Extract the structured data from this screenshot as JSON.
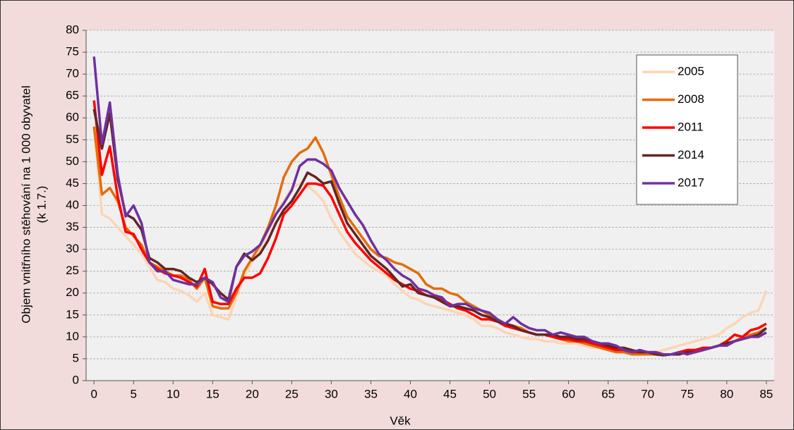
{
  "chart_data": {
    "type": "line",
    "x_label": "Věk",
    "y_label": [
      "Objem vnitřního stěhování na 1 000 obyvatel",
      "(k 1.7.)"
    ],
    "x": [
      0,
      1,
      2,
      3,
      4,
      5,
      6,
      7,
      8,
      9,
      10,
      11,
      12,
      13,
      14,
      15,
      16,
      17,
      18,
      19,
      20,
      21,
      22,
      23,
      24,
      25,
      26,
      27,
      28,
      29,
      30,
      31,
      32,
      33,
      34,
      35,
      36,
      37,
      38,
      39,
      40,
      41,
      42,
      43,
      44,
      45,
      46,
      47,
      48,
      49,
      50,
      51,
      52,
      53,
      54,
      55,
      56,
      57,
      58,
      59,
      60,
      61,
      62,
      63,
      64,
      65,
      66,
      67,
      68,
      69,
      70,
      71,
      72,
      73,
      74,
      75,
      76,
      77,
      78,
      79,
      80,
      81,
      82,
      83,
      84,
      85
    ],
    "xlim": [
      -1,
      86
    ],
    "xticks": [
      0,
      5,
      10,
      15,
      20,
      25,
      30,
      35,
      40,
      45,
      50,
      55,
      60,
      65,
      70,
      75,
      80,
      85
    ],
    "ylim": [
      0,
      80
    ],
    "yticks": [
      0,
      5,
      10,
      15,
      20,
      25,
      30,
      35,
      40,
      45,
      50,
      55,
      60,
      65,
      70,
      75,
      80
    ],
    "grid": true,
    "legend_position": "upper right",
    "series": [
      {
        "name": "2005",
        "color": "#fcd5b5",
        "values": [
          58,
          38,
          37,
          35,
          33,
          31,
          29,
          26,
          23,
          22.5,
          21,
          20.5,
          19.5,
          18,
          20,
          15,
          14.5,
          14,
          19,
          24,
          27,
          30,
          34,
          38,
          41,
          44,
          45,
          44.5,
          43,
          41,
          37,
          34,
          31.5,
          29,
          27.5,
          26,
          25,
          24,
          22,
          20.5,
          19,
          18.5,
          17.5,
          17,
          16.5,
          16,
          15.5,
          15,
          14,
          12.5,
          12.5,
          12,
          11,
          10.5,
          10,
          9.5,
          9.5,
          9,
          9,
          8.5,
          8.5,
          8.5,
          8,
          7.5,
          7.5,
          7,
          6.5,
          6.5,
          6.5,
          6,
          6,
          6.5,
          7,
          7.5,
          8,
          8.5,
          9,
          9.5,
          10,
          10.5,
          12,
          13,
          14.5,
          15.5,
          16,
          20.5
        ]
      },
      {
        "name": "2008",
        "color": "#e46c0a",
        "values": [
          58,
          42.5,
          44,
          41,
          35,
          33,
          31,
          27,
          26,
          25,
          24,
          24,
          23,
          21,
          23.5,
          17,
          16.5,
          16.5,
          20,
          25,
          28,
          31,
          35,
          40,
          46.5,
          50,
          52,
          53,
          55.5,
          52,
          47,
          42,
          37.5,
          35,
          32.5,
          30,
          28.5,
          28,
          27,
          26.5,
          25.5,
          24.5,
          22,
          21,
          21,
          20,
          19.5,
          18,
          17,
          16,
          15,
          14,
          13,
          12.5,
          12,
          11,
          10.5,
          10.5,
          10,
          9.5,
          9,
          9,
          8.5,
          8,
          7.5,
          7,
          6.5,
          6.5,
          6,
          6,
          6,
          6,
          6,
          6,
          6.5,
          6.5,
          7,
          7,
          7.5,
          8,
          8.5,
          9,
          10,
          10.5,
          11,
          12
        ]
      },
      {
        "name": "2011",
        "color": "#ff0000",
        "values": [
          64,
          47,
          53.5,
          42,
          34,
          33.5,
          30,
          27,
          25.5,
          24.5,
          24,
          23.5,
          22.5,
          21.5,
          25.5,
          18,
          17.5,
          17.5,
          21,
          23.5,
          23.5,
          24.5,
          28,
          32.5,
          38,
          40,
          42.5,
          45,
          45,
          44.5,
          42,
          38,
          34,
          31.5,
          29.5,
          27.5,
          26,
          24.5,
          23,
          22,
          21,
          20.5,
          19.5,
          19,
          18.5,
          17.5,
          16.5,
          16,
          15,
          14,
          14,
          13.5,
          12.5,
          12,
          11.5,
          11,
          10.5,
          10.5,
          10,
          9.5,
          9.5,
          9,
          9,
          8.5,
          8,
          7.5,
          7,
          7,
          6.5,
          6.5,
          6.5,
          6.5,
          6,
          6,
          6.5,
          7,
          7,
          7.5,
          7.5,
          8,
          9,
          10.5,
          10,
          11.5,
          12,
          13
        ]
      },
      {
        "name": "2014",
        "color": "#632523",
        "values": [
          62,
          53,
          61,
          46,
          38,
          37,
          34.5,
          28,
          27,
          25.5,
          25.5,
          25,
          23.5,
          22.5,
          23.5,
          22,
          20,
          18.5,
          26,
          29,
          27.5,
          29,
          32,
          36,
          39,
          41,
          44,
          47.5,
          46.5,
          45,
          45.5,
          40.5,
          36,
          33.5,
          31,
          28.5,
          27,
          25.5,
          23.5,
          21.5,
          22,
          20,
          19.5,
          19,
          18,
          17,
          17,
          16.5,
          16,
          15,
          14.5,
          13.5,
          13,
          12.5,
          11.5,
          11,
          10.5,
          10.5,
          10.5,
          10,
          10,
          9.5,
          9.5,
          9,
          8.5,
          8,
          7.5,
          7.5,
          7,
          6.5,
          6.5,
          6,
          5.8,
          6,
          6,
          6.5,
          6.5,
          7,
          7.5,
          8,
          8.5,
          9,
          9.5,
          10,
          10.5,
          12
        ]
      },
      {
        "name": "2017",
        "color": "#7030a0",
        "values": [
          74,
          54,
          63.5,
          47,
          37.5,
          40,
          36,
          27,
          25,
          25,
          23,
          22.5,
          22,
          22,
          23.5,
          22.5,
          19,
          18,
          26,
          28.5,
          29.5,
          31,
          34.5,
          38,
          40.5,
          43.5,
          49,
          50.5,
          50.5,
          49.5,
          48,
          44,
          41,
          38,
          35.5,
          32,
          29,
          27.5,
          25.5,
          24,
          23,
          21,
          20.5,
          19.5,
          19,
          17,
          17.5,
          17.5,
          16.5,
          16,
          15.5,
          14,
          13,
          14.5,
          13,
          12,
          11.5,
          11.5,
          10.5,
          11,
          10.5,
          10,
          10,
          9,
          8.5,
          8.5,
          8,
          7,
          6.5,
          7,
          6.5,
          6.5,
          6,
          6,
          6.5,
          6,
          6.5,
          7,
          7.5,
          8,
          8,
          9,
          9.5,
          10,
          10,
          11
        ]
      }
    ]
  }
}
